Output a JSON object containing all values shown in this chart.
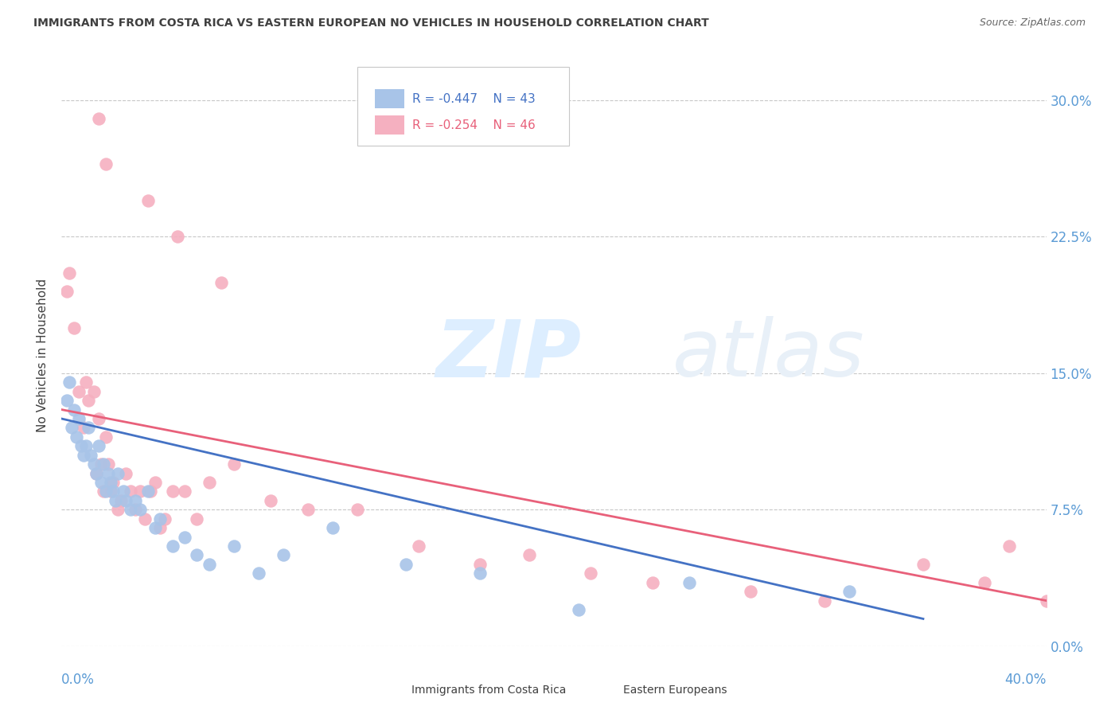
{
  "title": "IMMIGRANTS FROM COSTA RICA VS EASTERN EUROPEAN NO VEHICLES IN HOUSEHOLD CORRELATION CHART",
  "source": "Source: ZipAtlas.com",
  "ylabel": "No Vehicles in Household",
  "ytick_values": [
    0.0,
    7.5,
    15.0,
    22.5,
    30.0
  ],
  "xmin": 0.0,
  "xmax": 40.0,
  "ymin": 0.0,
  "ymax": 32.0,
  "legend_blue_r": "-0.447",
  "legend_blue_n": "43",
  "legend_pink_r": "-0.254",
  "legend_pink_n": "46",
  "legend_blue_label": "Immigrants from Costa Rica",
  "legend_pink_label": "Eastern Europeans",
  "blue_color": "#a8c4e8",
  "pink_color": "#f5b0c0",
  "blue_line_color": "#4472c4",
  "pink_line_color": "#e8607a",
  "axis_label_color": "#5b9bd5",
  "title_color": "#404040",
  "grid_color": "#c8c8c8",
  "background_color": "#ffffff",
  "watermark_zip": "ZIP",
  "watermark_atlas": "atlas",
  "watermark_color": "#ddeeff",
  "blue_x": [
    0.2,
    0.3,
    0.4,
    0.5,
    0.6,
    0.7,
    0.8,
    0.9,
    1.0,
    1.1,
    1.2,
    1.3,
    1.4,
    1.5,
    1.6,
    1.7,
    1.8,
    1.9,
    2.0,
    2.1,
    2.2,
    2.3,
    2.5,
    2.6,
    2.8,
    3.0,
    3.2,
    3.5,
    3.8,
    4.0,
    4.5,
    5.0,
    5.5,
    6.0,
    7.0,
    8.0,
    9.0,
    11.0,
    14.0,
    17.0,
    21.0,
    25.5,
    32.0
  ],
  "blue_y": [
    13.5,
    14.5,
    12.0,
    13.0,
    11.5,
    12.5,
    11.0,
    10.5,
    11.0,
    12.0,
    10.5,
    10.0,
    9.5,
    11.0,
    9.0,
    10.0,
    8.5,
    9.5,
    9.0,
    8.5,
    8.0,
    9.5,
    8.5,
    8.0,
    7.5,
    8.0,
    7.5,
    8.5,
    6.5,
    7.0,
    5.5,
    6.0,
    5.0,
    4.5,
    5.5,
    4.0,
    5.0,
    6.5,
    4.5,
    4.0,
    2.0,
    3.5,
    3.0
  ],
  "pink_x": [
    0.2,
    0.3,
    0.5,
    0.7,
    0.9,
    1.0,
    1.1,
    1.3,
    1.4,
    1.5,
    1.6,
    1.7,
    1.8,
    1.9,
    2.0,
    2.1,
    2.3,
    2.4,
    2.6,
    2.8,
    3.0,
    3.2,
    3.4,
    3.6,
    3.8,
    4.0,
    4.2,
    4.5,
    5.0,
    5.5,
    6.0,
    7.0,
    8.5,
    10.0,
    12.0,
    14.5,
    17.0,
    19.0,
    21.5,
    24.0,
    28.0,
    31.0,
    35.0,
    37.5,
    38.5,
    40.0
  ],
  "pink_y": [
    19.5,
    20.5,
    17.5,
    14.0,
    12.0,
    14.5,
    13.5,
    14.0,
    9.5,
    12.5,
    10.0,
    8.5,
    11.5,
    10.0,
    8.5,
    9.0,
    7.5,
    8.0,
    9.5,
    8.5,
    7.5,
    8.5,
    7.0,
    8.5,
    9.0,
    6.5,
    7.0,
    8.5,
    8.5,
    7.0,
    9.0,
    10.0,
    8.0,
    7.5,
    7.5,
    5.5,
    4.5,
    5.0,
    4.0,
    3.5,
    3.0,
    2.5,
    4.5,
    3.5,
    5.5,
    2.5
  ],
  "pink_extra_x": [
    1.5,
    1.8,
    3.5,
    4.7,
    6.5
  ],
  "pink_extra_y": [
    29.0,
    26.5,
    24.5,
    22.5,
    20.0
  ],
  "blue_trendline": [
    [
      0.0,
      35.0
    ],
    [
      12.5,
      1.5
    ]
  ],
  "pink_trendline": [
    [
      0.0,
      40.0
    ],
    [
      13.0,
      2.5
    ]
  ]
}
